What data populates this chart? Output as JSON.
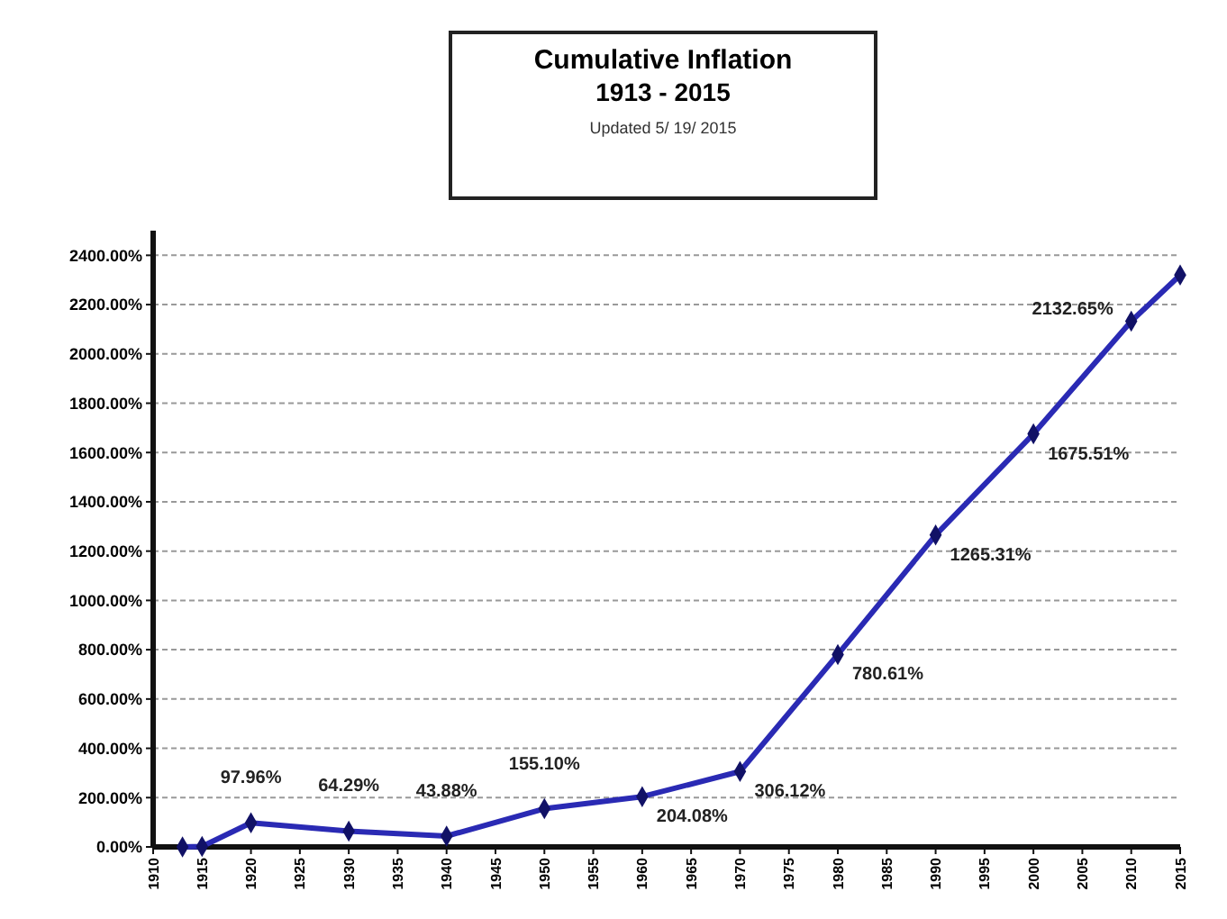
{
  "chart_data": {
    "type": "line",
    "title": "Cumulative Inflation",
    "subtitle": "1913 - 2015",
    "annotations": [
      "Updated 5/ 19/ 2015"
    ],
    "x": [
      1913,
      1915,
      1920,
      1930,
      1940,
      1950,
      1960,
      1970,
      1980,
      1990,
      2000,
      2010,
      2015
    ],
    "series": [
      {
        "color": "#2a2ab4",
        "values": [
          0,
          2,
          97.96,
          64.29,
          43.88,
          155.1,
          204.08,
          306.12,
          780.61,
          1265.31,
          1675.51,
          2132.65,
          2320
        ],
        "value_labels": [
          null,
          null,
          "97.96%",
          "64.29%",
          "43.88%",
          "155.10%",
          "204.08%",
          "306.12%",
          "780.61%",
          "1265.31%",
          "1675.51%",
          "2132.65%",
          null
        ]
      }
    ],
    "xlim": [
      1910,
      2015
    ],
    "xticks": [
      1910,
      1915,
      1920,
      1925,
      1930,
      1935,
      1940,
      1945,
      1950,
      1955,
      1960,
      1965,
      1970,
      1975,
      1980,
      1985,
      1990,
      1995,
      2000,
      2005,
      2010,
      2015
    ],
    "ylim": [
      0,
      2500
    ],
    "yticks": [
      {
        "value": 0,
        "label": "0.00%"
      },
      {
        "value": 200,
        "label": "200.00%"
      },
      {
        "value": 400,
        "label": "400.00%"
      },
      {
        "value": 600,
        "label": "600.00%"
      },
      {
        "value": 800,
        "label": "800.00%"
      },
      {
        "value": 1000,
        "label": "1000.00%"
      },
      {
        "value": 1200,
        "label": "1200.00%"
      },
      {
        "value": 1400,
        "label": "1400.00%"
      },
      {
        "value": 1600,
        "label": "1600.00%"
      },
      {
        "value": 1800,
        "label": "1800.00%"
      },
      {
        "value": 2000,
        "label": "2000.00%"
      },
      {
        "value": 2200,
        "label": "2200.00%"
      },
      {
        "value": 2400,
        "label": "2400.00%"
      }
    ],
    "grid": "y",
    "marker": "diamond",
    "line_style": "solid"
  }
}
